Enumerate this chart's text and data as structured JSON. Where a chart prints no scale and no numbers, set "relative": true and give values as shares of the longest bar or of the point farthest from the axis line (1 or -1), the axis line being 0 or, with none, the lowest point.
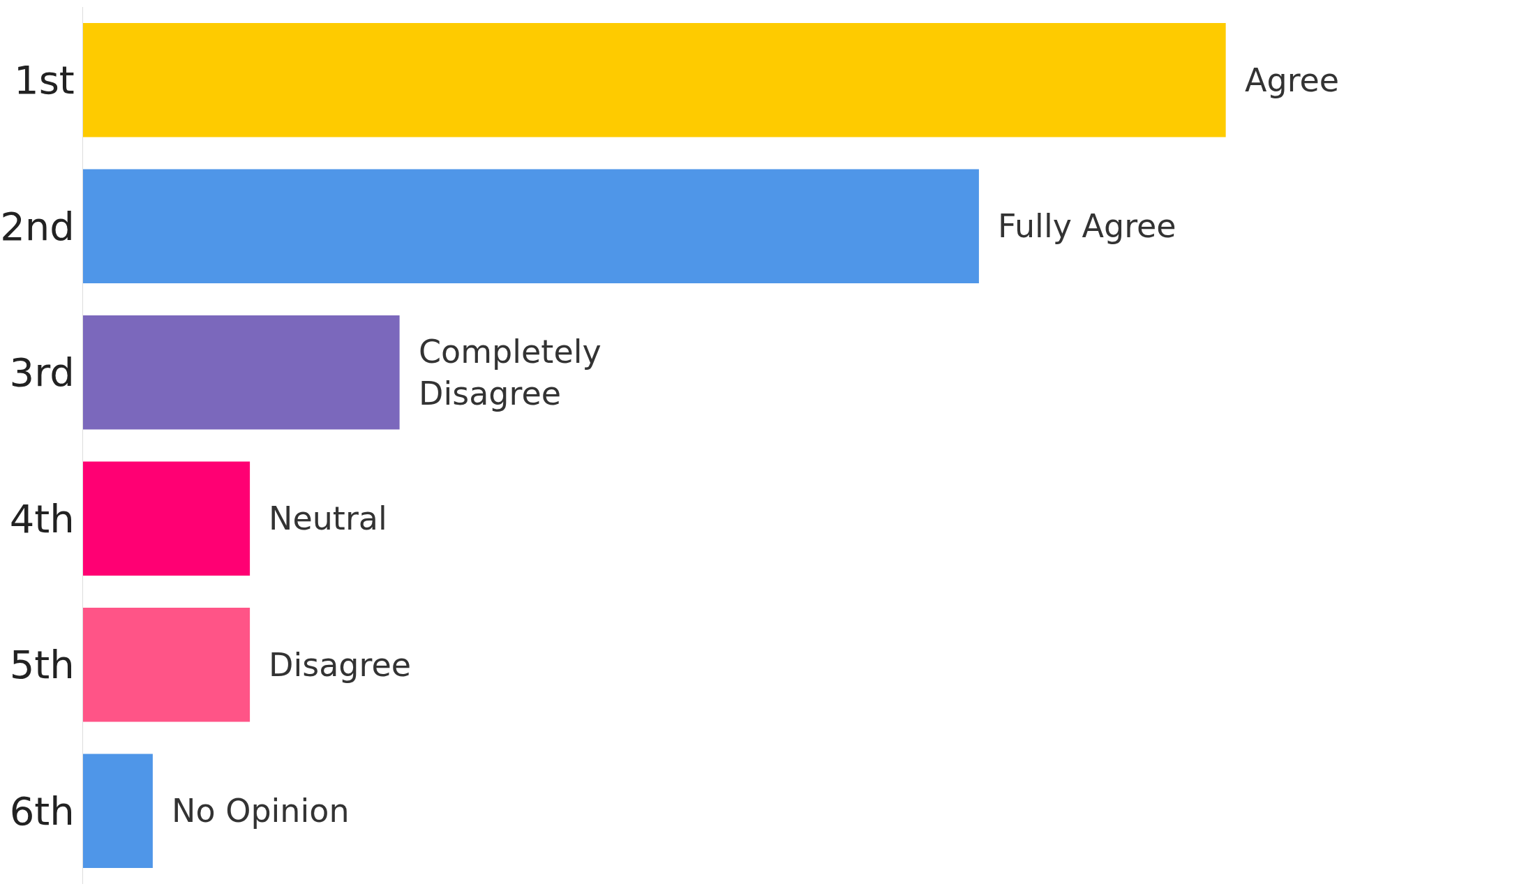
{
  "chart_data": {
    "type": "bar",
    "orientation": "horizontal",
    "relative": true,
    "categories": [
      "1st",
      "2nd",
      "3rd",
      "4th",
      "5th",
      "6th"
    ],
    "values": [
      1,
      0.784,
      0.277,
      0.146,
      0.146,
      0.061
    ],
    "colors": [
      "#fecb00",
      "#4f96e8",
      "#7b68bc",
      "#ff0073",
      "#ff5487",
      "#4f96e8"
    ],
    "annotations": [
      {
        "text": "Agree",
        "x": 1,
        "y": "1st"
      },
      {
        "text": "Fully Agree",
        "x": 0.784,
        "y": "2nd"
      },
      {
        "text": "Completely\nDisagree",
        "x": 0.277,
        "y": "3rd"
      },
      {
        "text": "Neutral",
        "x": 0.146,
        "y": "4th"
      },
      {
        "text": "Disagree",
        "x": 0.146,
        "y": "5th"
      },
      {
        "text": "No Opinion",
        "x": 0.061,
        "y": "6th"
      }
    ],
    "legend": false
  }
}
